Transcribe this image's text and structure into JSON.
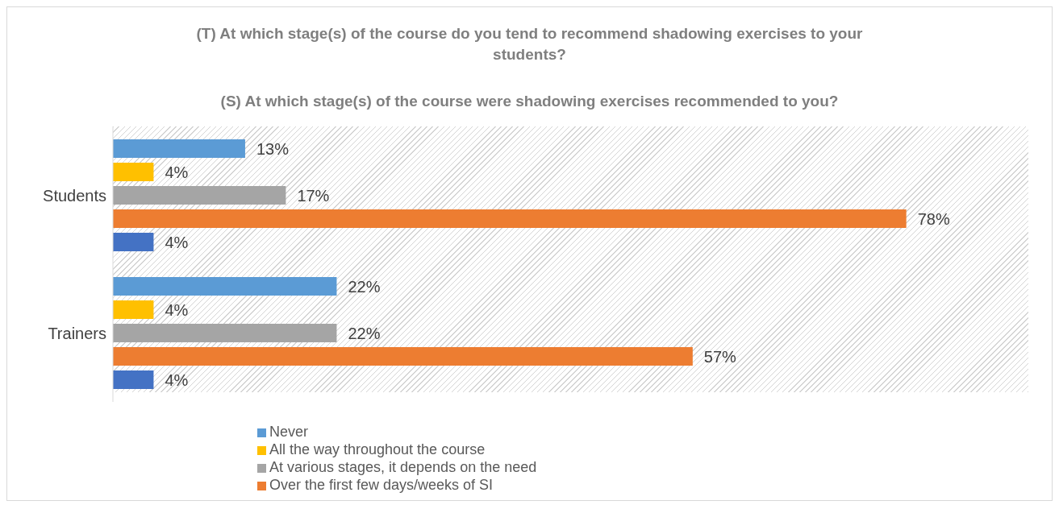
{
  "chart_data": {
    "type": "bar",
    "orientation": "horizontal",
    "title": "(T) At which stage(s) of the course do you tend to recommend shadowing exercises to your students?",
    "subtitle": "(S) At which stage(s) of the course were shadowing exercises recommended to you?",
    "categories": [
      "Students",
      "Trainers"
    ],
    "series": [
      {
        "name": "Never",
        "color": "#5b9bd5",
        "values": [
          13,
          22
        ],
        "value_labels": [
          "13%",
          "22%"
        ]
      },
      {
        "name": "All the way throughout the course",
        "color": "#ffc000",
        "values": [
          4,
          4
        ],
        "value_labels": [
          "4%",
          "4%"
        ]
      },
      {
        "name": "At various stages, it depends on the need",
        "color": "#a5a5a5",
        "values": [
          17,
          22
        ],
        "value_labels": [
          "17%",
          "22%"
        ]
      },
      {
        "name": "Over the first few days/weeks of SI",
        "color": "#ed7d31",
        "values": [
          78,
          57
        ],
        "value_labels": [
          "78%",
          "57%"
        ]
      },
      {
        "color": "#4472c4",
        "values": [
          4,
          4
        ],
        "value_labels": [
          "4%",
          "4%"
        ]
      }
    ],
    "xlim": [
      0,
      90
    ],
    "tick_labels": "y",
    "legend": "bottom"
  }
}
